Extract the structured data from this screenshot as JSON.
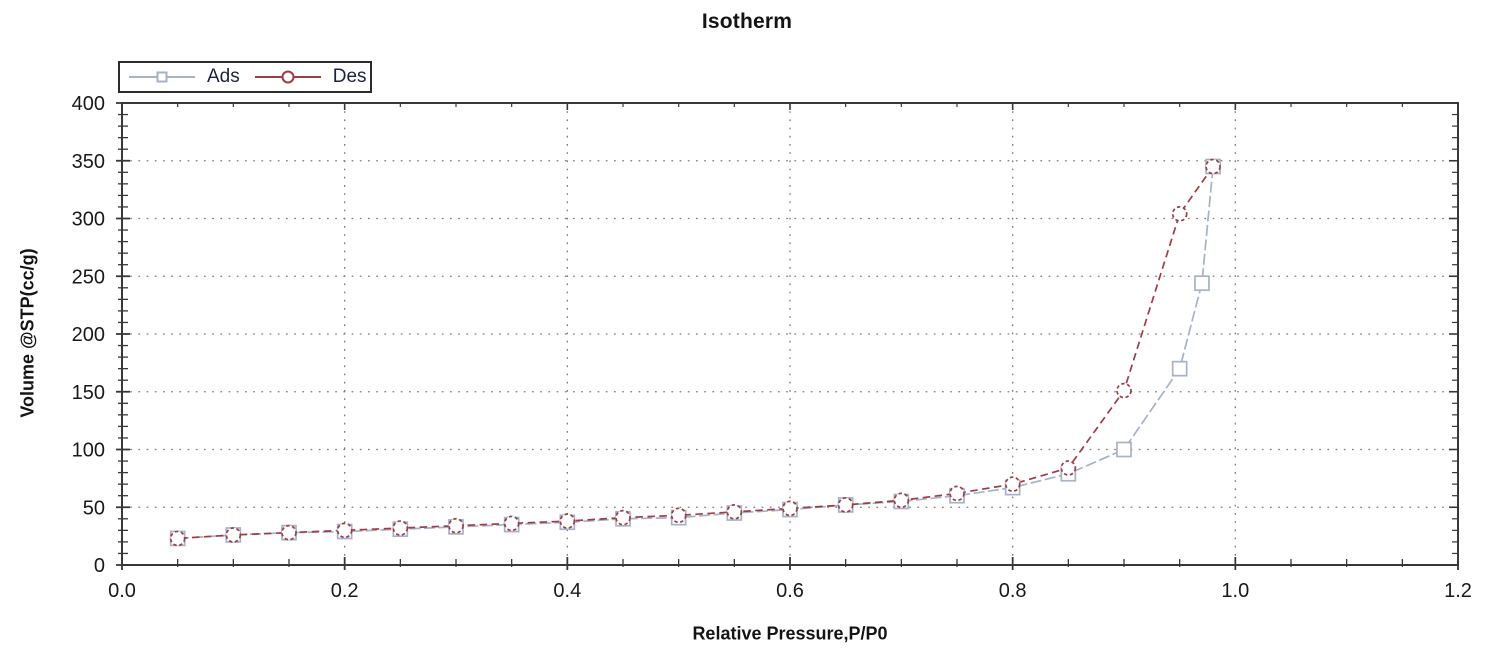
{
  "chart_data": {
    "type": "line",
    "title": "Isotherm",
    "xlabel": "Relative Pressure,P/P0",
    "ylabel": "Volume @STP(cc/g)",
    "xlim": [
      0.0,
      1.2
    ],
    "ylim": [
      0,
      400
    ],
    "x_major_ticks": [
      0.0,
      0.2,
      0.4,
      0.6,
      0.8,
      1.0,
      1.2
    ],
    "x_tick_labels": [
      "0.0",
      "0.2",
      "0.4",
      "0.6",
      "0.8",
      "1.0",
      "1.2"
    ],
    "x_minor_step": 0.05,
    "y_major_ticks": [
      0,
      50,
      100,
      150,
      200,
      250,
      300,
      350,
      400
    ],
    "y_tick_labels": [
      "0",
      "50",
      "100",
      "150",
      "200",
      "250",
      "300",
      "350",
      "400"
    ],
    "y_minor_step": 10,
    "grid": "dotted lines at major ticks, both axes",
    "legend_position": "top-left",
    "legend": {
      "entries": [
        {
          "label": "Ads",
          "marker": "square"
        },
        {
          "label": "Des",
          "marker": "circle"
        }
      ]
    },
    "series": [
      {
        "name": "Ads",
        "marker": "square",
        "line_style": "long-dash",
        "color": "#a6b2c7",
        "x": [
          0.05,
          0.1,
          0.15,
          0.2,
          0.25,
          0.3,
          0.35,
          0.4,
          0.45,
          0.5,
          0.55,
          0.6,
          0.65,
          0.7,
          0.75,
          0.8,
          0.85,
          0.9,
          0.95,
          0.97,
          0.98
        ],
        "y": [
          23,
          26,
          28,
          29,
          31,
          33,
          35,
          37,
          40,
          41,
          45,
          48,
          52,
          55,
          60,
          67,
          79,
          100,
          170,
          244,
          345
        ]
      },
      {
        "name": "Des",
        "marker": "circle",
        "line_style": "dash",
        "color": "#9c3e44",
        "x": [
          0.98,
          0.95,
          0.9,
          0.85,
          0.8,
          0.75,
          0.7,
          0.65,
          0.6,
          0.55,
          0.5,
          0.45,
          0.4,
          0.35,
          0.3,
          0.25,
          0.2,
          0.15,
          0.1,
          0.05
        ],
        "y": [
          345,
          304,
          151,
          84,
          70,
          62,
          56,
          52,
          49,
          46,
          43,
          41,
          38,
          36,
          34,
          32,
          30,
          28,
          26,
          23
        ]
      }
    ],
    "colors": {
      "ads": "#a6b2c7",
      "des": "#9c3e44",
      "grid": "#7a7a7a",
      "axis": "#383838",
      "tick_text": "#191919",
      "legend_text": "#1c2240"
    }
  }
}
